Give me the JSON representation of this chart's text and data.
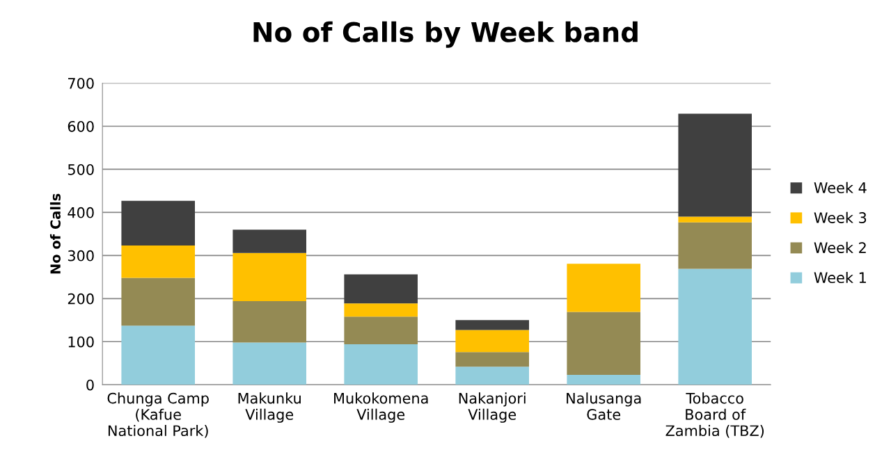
{
  "chart_data": {
    "type": "bar",
    "title": "No of Calls by Week band",
    "ylabel": "No of Calls",
    "categories": [
      "Chunga Camp\n(Kafue\nNational Park)",
      "Makunku\nVillage",
      "Mukokomena\nVillage",
      "Nakanjori\nVillage",
      "Nalusanga\nGate",
      "Tobacco\nBoard of\nZambia (TBZ)"
    ],
    "series": [
      {
        "name": "Week 1",
        "color": "#92cddc",
        "values": [
          137,
          98,
          94,
          42,
          23,
          269
        ]
      },
      {
        "name": "Week 2",
        "color": "#948a54",
        "values": [
          111,
          96,
          64,
          34,
          146,
          108
        ]
      },
      {
        "name": "Week 3",
        "color": "#ffc000",
        "values": [
          75,
          112,
          31,
          51,
          112,
          13
        ]
      },
      {
        "name": "Week 4",
        "color": "#404040",
        "values": [
          104,
          54,
          67,
          23,
          0,
          239
        ]
      }
    ],
    "stacked": true,
    "ylim": [
      0,
      700
    ],
    "yticks": [
      0,
      100,
      200,
      300,
      400,
      500,
      600,
      700
    ],
    "grid": "y",
    "legend": "right"
  }
}
